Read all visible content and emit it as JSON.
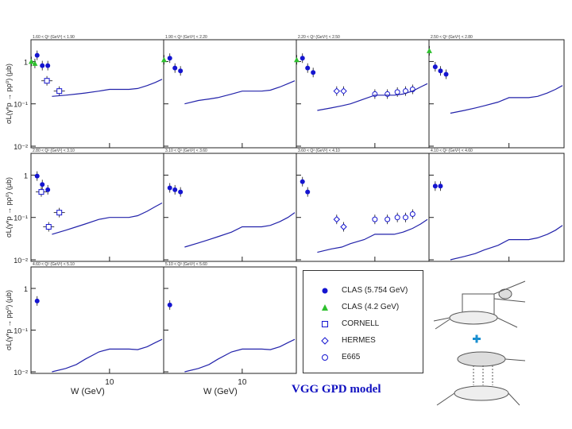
{
  "figure": {
    "ylabel_full": "σL(γ*p → pρ⁰) (μb)",
    "xlabel": "W (GeV)",
    "x_tick": "10",
    "y_ticks": [
      "1",
      "10⁻¹",
      "10⁻²"
    ]
  },
  "legend": {
    "items": [
      {
        "label": "CLAS (5.754 GeV)",
        "marker": "filled-circle",
        "color": "#1515d0"
      },
      {
        "label": "CLAS (4.2 GeV)",
        "marker": "filled-triangle",
        "color": "#2ec02e"
      },
      {
        "label": "CORNELL",
        "marker": "open-square",
        "color": "#1515d0"
      },
      {
        "label": "HERMES",
        "marker": "open-diamond",
        "color": "#1515d0"
      },
      {
        "label": "E665",
        "marker": "open-circle",
        "color": "#1515d0"
      }
    ]
  },
  "caption": "VGG GPD model",
  "diagram": {
    "plus_color": "#1a8fd0"
  },
  "chart_data": [
    {
      "type": "scatter",
      "title": "1.60 < Q² (GeV²) < 1.90",
      "xlim": [
        2,
        30
      ],
      "ylim": [
        0.01,
        3
      ],
      "series": [
        {
          "name": "CLAS (5.754 GeV)",
          "x": [
            2.2,
            2.45,
            2.75
          ],
          "y": [
            1.4,
            0.8,
            0.8
          ]
        },
        {
          "name": "CLAS (4.2 GeV)",
          "x": [
            1.95,
            2.1
          ],
          "y": [
            1.0,
            0.9
          ]
        },
        {
          "name": "CORNELL",
          "x": [
            2.7,
            3.5
          ],
          "y": [
            0.35,
            0.2
          ]
        },
        {
          "name": "VGG GPD model",
          "x": [
            3,
            4,
            5,
            6,
            8,
            10,
            12,
            15,
            18,
            22,
            26,
            30
          ],
          "y": [
            0.15,
            0.16,
            0.17,
            0.18,
            0.2,
            0.22,
            0.22,
            0.22,
            0.23,
            0.27,
            0.32,
            0.38
          ]
        }
      ]
    },
    {
      "type": "scatter",
      "title": "1.90 < Q² (GeV²) < 2.20",
      "xlim": [
        2,
        30
      ],
      "ylim": [
        0.01,
        3
      ],
      "series": [
        {
          "name": "CLAS (5.754 GeV)",
          "x": [
            2.2,
            2.45,
            2.75
          ],
          "y": [
            1.2,
            0.7,
            0.6
          ]
        },
        {
          "name": "CLAS (4.2 GeV)",
          "x": [
            1.95
          ],
          "y": [
            1.1
          ]
        },
        {
          "name": "VGG GPD model",
          "x": [
            3,
            4,
            5,
            6,
            8,
            10,
            12,
            15,
            18,
            22,
            26,
            30
          ],
          "y": [
            0.1,
            0.12,
            0.13,
            0.14,
            0.17,
            0.2,
            0.2,
            0.2,
            0.21,
            0.25,
            0.3,
            0.35
          ]
        }
      ]
    },
    {
      "type": "scatter",
      "title": "2.20 < Q² (GeV²) < 2.50",
      "xlim": [
        2,
        30
      ],
      "ylim": [
        0.01,
        3
      ],
      "series": [
        {
          "name": "CLAS (5.754 GeV)",
          "x": [
            2.2,
            2.45,
            2.75
          ],
          "y": [
            1.2,
            0.7,
            0.55
          ]
        },
        {
          "name": "CLAS (4.2 GeV)",
          "x": [
            1.95
          ],
          "y": [
            1.1
          ]
        },
        {
          "name": "HERMES",
          "x": [
            4.5,
            5.2
          ],
          "y": [
            0.2,
            0.2
          ]
        },
        {
          "name": "E665",
          "x": [
            10,
            13,
            16,
            19,
            22
          ],
          "y": [
            0.17,
            0.17,
            0.19,
            0.2,
            0.22
          ]
        },
        {
          "name": "VGG GPD model",
          "x": [
            3,
            4,
            5,
            6,
            8,
            10,
            12,
            15,
            18,
            22,
            26,
            30
          ],
          "y": [
            0.07,
            0.08,
            0.09,
            0.1,
            0.13,
            0.16,
            0.16,
            0.16,
            0.17,
            0.2,
            0.25,
            0.3
          ]
        }
      ]
    },
    {
      "type": "scatter",
      "title": "2.50 < Q² (GeV²) < 2.80",
      "xlim": [
        2,
        30
      ],
      "ylim": [
        0.01,
        3
      ],
      "series": [
        {
          "name": "CLAS (5.754 GeV)",
          "x": [
            2.2,
            2.45,
            2.75
          ],
          "y": [
            0.75,
            0.6,
            0.5
          ]
        },
        {
          "name": "CLAS (4.2 GeV)",
          "x": [
            1.95
          ],
          "y": [
            1.8
          ]
        },
        {
          "name": "VGG GPD model",
          "x": [
            3,
            4,
            5,
            6,
            8,
            10,
            12,
            15,
            18,
            22,
            26,
            30
          ],
          "y": [
            0.06,
            0.07,
            0.08,
            0.09,
            0.11,
            0.14,
            0.14,
            0.14,
            0.15,
            0.18,
            0.22,
            0.27
          ]
        }
      ]
    },
    {
      "type": "scatter",
      "title": "2.80 < Q² (GeV²) < 3.10",
      "xlim": [
        2,
        30
      ],
      "ylim": [
        0.01,
        3
      ],
      "series": [
        {
          "name": "CLAS (5.754 GeV)",
          "x": [
            2.2,
            2.45,
            2.75
          ],
          "y": [
            0.95,
            0.6,
            0.45
          ]
        },
        {
          "name": "CORNELL",
          "x": [
            2.4,
            2.8,
            3.5
          ],
          "y": [
            0.4,
            0.06,
            0.13
          ]
        },
        {
          "name": "VGG GPD model",
          "x": [
            3,
            4,
            5,
            6,
            8,
            10,
            12,
            15,
            18,
            22,
            26,
            30
          ],
          "y": [
            0.04,
            0.05,
            0.06,
            0.07,
            0.09,
            0.1,
            0.1,
            0.1,
            0.11,
            0.14,
            0.18,
            0.22
          ]
        }
      ]
    },
    {
      "type": "scatter",
      "title": "3.10 < Q² (GeV²) < 3.60",
      "xlim": [
        2,
        30
      ],
      "ylim": [
        0.01,
        3
      ],
      "series": [
        {
          "name": "CLAS (5.754 GeV)",
          "x": [
            2.2,
            2.45,
            2.75
          ],
          "y": [
            0.5,
            0.45,
            0.4
          ]
        },
        {
          "name": "VGG GPD model",
          "x": [
            3,
            4,
            5,
            6,
            8,
            10,
            12,
            15,
            18,
            22,
            26,
            30
          ],
          "y": [
            0.02,
            0.025,
            0.03,
            0.035,
            0.045,
            0.06,
            0.06,
            0.06,
            0.065,
            0.08,
            0.1,
            0.13
          ]
        }
      ]
    },
    {
      "type": "scatter",
      "title": "3.60 < Q² (GeV²) < 4.10",
      "xlim": [
        2,
        30
      ],
      "ylim": [
        0.01,
        3
      ],
      "series": [
        {
          "name": "CLAS (5.754 GeV)",
          "x": [
            2.2,
            2.45
          ],
          "y": [
            0.7,
            0.4
          ]
        },
        {
          "name": "HERMES",
          "x": [
            4.5,
            5.2
          ],
          "y": [
            0.09,
            0.06
          ]
        },
        {
          "name": "E665",
          "x": [
            10,
            13,
            16,
            19,
            22
          ],
          "y": [
            0.09,
            0.09,
            0.1,
            0.1,
            0.12
          ]
        },
        {
          "name": "VGG GPD model",
          "x": [
            3,
            4,
            5,
            6,
            8,
            10,
            12,
            15,
            18,
            22,
            26,
            30
          ],
          "y": [
            0.015,
            0.018,
            0.02,
            0.024,
            0.03,
            0.04,
            0.04,
            0.04,
            0.045,
            0.055,
            0.07,
            0.09
          ]
        }
      ]
    },
    {
      "type": "scatter",
      "title": "4.10 < Q² (GeV²) < 4.60",
      "xlim": [
        2,
        30
      ],
      "ylim": [
        0.01,
        3
      ],
      "series": [
        {
          "name": "CLAS (5.754 GeV)",
          "x": [
            2.2,
            2.45
          ],
          "y": [
            0.55,
            0.55
          ]
        },
        {
          "name": "VGG GPD model",
          "x": [
            3,
            4,
            5,
            6,
            8,
            10,
            12,
            15,
            18,
            22,
            26,
            30
          ],
          "y": [
            0.01,
            0.012,
            0.014,
            0.017,
            0.022,
            0.03,
            0.03,
            0.03,
            0.033,
            0.04,
            0.05,
            0.065
          ]
        }
      ]
    },
    {
      "type": "scatter",
      "title": "4.60 < Q² (GeV²) < 5.10",
      "xlim": [
        2,
        30
      ],
      "ylim": [
        0.01,
        3
      ],
      "series": [
        {
          "name": "CLAS (5.754 GeV)",
          "x": [
            2.2
          ],
          "y": [
            0.5
          ]
        },
        {
          "name": "VGG GPD model",
          "x": [
            3,
            4,
            5,
            6,
            8,
            10,
            12,
            15,
            18,
            22,
            26,
            30
          ],
          "y": [
            0.01,
            0.012,
            0.015,
            0.02,
            0.03,
            0.035,
            0.035,
            0.035,
            0.034,
            0.04,
            0.05,
            0.06
          ]
        }
      ]
    },
    {
      "type": "scatter",
      "title": "5.10 < Q² (GeV²) < 5.60",
      "xlim": [
        2,
        30
      ],
      "ylim": [
        0.01,
        3
      ],
      "series": [
        {
          "name": "CLAS (5.754 GeV)",
          "x": [
            2.2
          ],
          "y": [
            0.4
          ]
        },
        {
          "name": "VGG GPD model",
          "x": [
            3,
            4,
            5,
            6,
            8,
            10,
            12,
            15,
            18,
            22,
            26,
            30
          ],
          "y": [
            0.01,
            0.012,
            0.015,
            0.02,
            0.03,
            0.035,
            0.035,
            0.035,
            0.034,
            0.04,
            0.05,
            0.06
          ]
        }
      ]
    }
  ]
}
